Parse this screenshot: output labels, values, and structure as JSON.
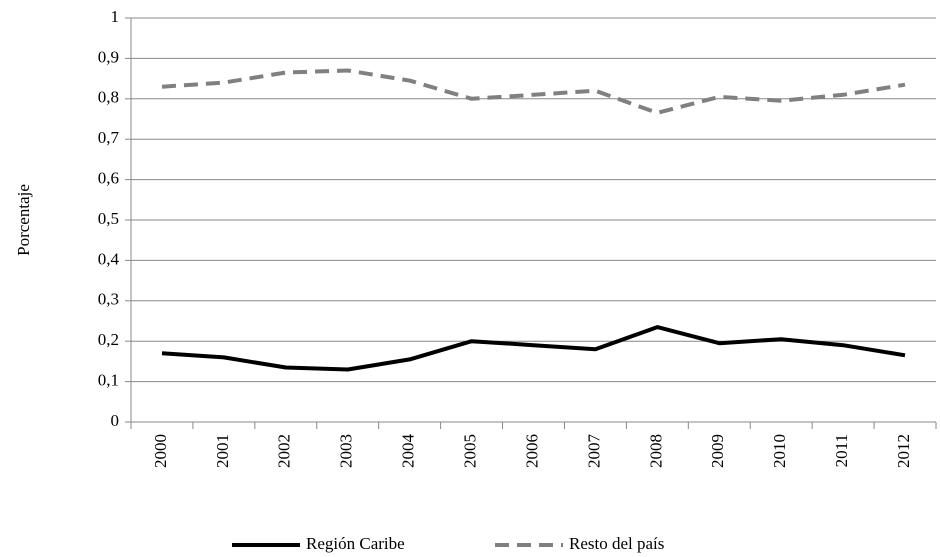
{
  "chart_data": {
    "type": "line",
    "y_label": "Porcentaje",
    "categories": [
      "2000",
      "2001",
      "2002",
      "2003",
      "2004",
      "2005",
      "2006",
      "2007",
      "2008",
      "2009",
      "2010",
      "2011",
      "2012"
    ],
    "series": [
      {
        "name": "Región Caribe",
        "color": "#000000",
        "dash": "solid",
        "values": [
          0.17,
          0.16,
          0.135,
          0.13,
          0.155,
          0.2,
          0.19,
          0.18,
          0.235,
          0.195,
          0.205,
          0.19,
          0.165
        ]
      },
      {
        "name": "Resto del país",
        "color": "#808080",
        "dash": "dashed",
        "values": [
          0.83,
          0.84,
          0.865,
          0.87,
          0.845,
          0.8,
          0.81,
          0.82,
          0.765,
          0.805,
          0.795,
          0.81,
          0.835
        ]
      }
    ],
    "ylim": [
      0,
      1
    ],
    "yticks": [
      0,
      {
        "value": 0.1,
        "label": "0,1"
      },
      {
        "value": 0.2,
        "label": "0,2"
      },
      {
        "value": 0.3,
        "label": "0,3"
      },
      {
        "value": 0.4,
        "label": "0,4"
      },
      {
        "value": 0.5,
        "label": "0,5"
      },
      {
        "value": 0.6,
        "label": "0,6"
      },
      {
        "value": 0.7,
        "label": "0,7"
      },
      {
        "value": 0.8,
        "label": "0,8"
      },
      {
        "value": 0.9,
        "label": "0,9"
      },
      1
    ],
    "grid": true,
    "legend": "bottom"
  }
}
